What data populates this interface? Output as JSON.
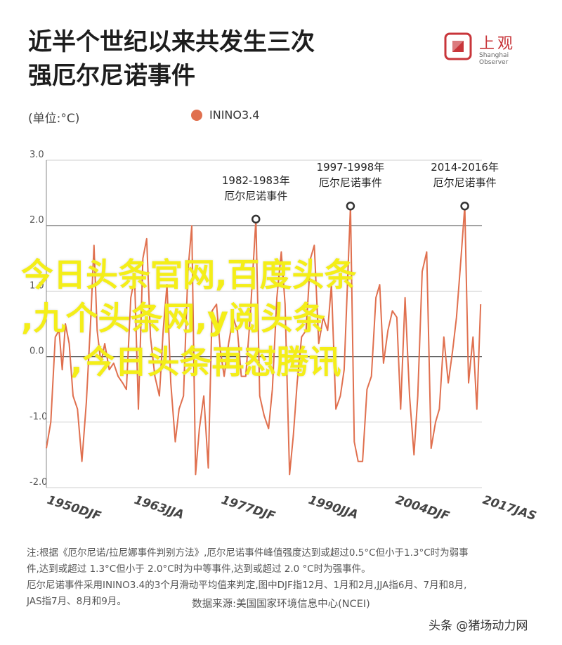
{
  "header": {
    "title_line1": "近半个世纪以来共发生三次",
    "title_line2": "强厄尔尼诺事件",
    "logo_cn": "上观",
    "logo_en": "Shanghai Observer"
  },
  "unit_label": "(单位:°C)",
  "watermark": {
    "line1": "今日头条官网,百度头条",
    "line2": ",九个头条网,y阅头条",
    "line3": ",今日头条再怼腾讯"
  },
  "notes": {
    "line1": "注:根据《厄尔尼诺/拉尼娜事件判别方法》,厄尔尼诺事件峰值强度达到或超过0.5°C但小于1.3°C时为弱事",
    "line2": "件,达到或超过 1.3°C但小于 2.0°C时为中等事件,达到或超过 2.0 °C时为强事件。",
    "line3": "厄尔尼诺事件采用ININO3.4的3个月滑动平均值来判定,图中DJF指12月、1月和2月,JJA指6月、7月和8月,",
    "line4": "JAS指7月、8月和9月。"
  },
  "source": "数据来源:美国国家环境信息中心(NCEI)",
  "brand": "头条 @猪场动力网",
  "colors": {
    "line": "#e0704f",
    "grid": "#cfcfcf",
    "axis": "#444444",
    "watermark": "#f4ee18",
    "logo": "#c8353a"
  },
  "chart_data": {
    "type": "line",
    "legend": "ININO3.4",
    "ylim": [
      -2.0,
      3.0
    ],
    "yticks": [
      "3.0",
      "2.0",
      "1.0",
      "0.0",
      "-1.0",
      "-2.0"
    ],
    "xticks": [
      "1950DJF",
      "1963JJA",
      "1977DJF",
      "1990JJA",
      "2004DJF",
      "2017JAS"
    ],
    "annotations": [
      {
        "label_line1": "1982-1983年",
        "label_line2": "厄尔尼诺事件",
        "x": 1983.0,
        "y": 2.1
      },
      {
        "label_line1": "1997-1998年",
        "label_line2": "厄尔尼诺事件",
        "x": 1997.9,
        "y": 2.3
      },
      {
        "label_line1": "2014-2016年",
        "label_line2": "厄尔尼诺事件",
        "x": 2015.9,
        "y": 2.3
      }
    ],
    "series": [
      {
        "name": "ININO3.4",
        "x": [
          1950.0,
          1950.7,
          1951.4,
          1952.0,
          1952.5,
          1953.0,
          1953.6,
          1954.2,
          1954.9,
          1955.6,
          1956.3,
          1957.0,
          1957.5,
          1958.0,
          1958.6,
          1959.2,
          1959.9,
          1960.6,
          1961.3,
          1962.0,
          1962.6,
          1963.3,
          1963.9,
          1964.5,
          1965.2,
          1965.8,
          1966.4,
          1967.1,
          1967.8,
          1968.4,
          1969.0,
          1969.6,
          1970.3,
          1970.9,
          1971.6,
          1972.3,
          1972.9,
          1973.5,
          1974.1,
          1974.8,
          1975.5,
          1976.1,
          1976.8,
          1977.4,
          1978.0,
          1978.7,
          1979.4,
          1980.1,
          1980.7,
          1981.4,
          1982.1,
          1983.0,
          1983.6,
          1984.3,
          1985.0,
          1985.6,
          1986.3,
          1987.0,
          1987.6,
          1988.3,
          1988.9,
          1989.5,
          1990.2,
          1990.9,
          1991.6,
          1992.2,
          1992.9,
          1993.6,
          1994.3,
          1994.9,
          1995.6,
          1996.3,
          1996.9,
          1997.9,
          1998.5,
          1999.1,
          1999.8,
          2000.5,
          2001.2,
          2001.9,
          2002.5,
          2003.1,
          2003.8,
          2004.5,
          2005.2,
          2005.8,
          2006.5,
          2007.2,
          2007.9,
          2008.5,
          2009.2,
          2009.9,
          2010.6,
          2011.3,
          2011.9,
          2012.6,
          2013.3,
          2014.0,
          2014.6,
          2015.3,
          2015.9,
          2016.5,
          2017.2,
          2017.8,
          2018.4
        ],
        "y": [
          -1.4,
          -1.0,
          0.3,
          0.4,
          -0.2,
          0.5,
          0.2,
          -0.6,
          -0.8,
          -1.6,
          -0.7,
          0.6,
          1.7,
          0.4,
          -0.1,
          0.2,
          -0.2,
          -0.1,
          -0.3,
          -0.4,
          -0.5,
          0.9,
          1.2,
          -0.8,
          1.5,
          1.8,
          0.3,
          -0.3,
          -0.6,
          0.4,
          1.1,
          -0.4,
          -1.3,
          -0.8,
          -0.6,
          1.3,
          2.0,
          -1.8,
          -1.1,
          -0.6,
          -1.7,
          0.7,
          0.8,
          0.1,
          -0.3,
          0.2,
          0.6,
          0.4,
          -0.3,
          -0.3,
          0.6,
          2.1,
          -0.6,
          -0.9,
          -1.1,
          -0.5,
          0.9,
          1.6,
          0.8,
          -1.8,
          -1.2,
          -0.4,
          0.3,
          0.4,
          1.5,
          1.7,
          0.2,
          0.6,
          0.4,
          1.1,
          -0.8,
          -0.6,
          -0.2,
          2.3,
          -1.3,
          -1.6,
          -1.6,
          -0.5,
          -0.3,
          0.9,
          1.1,
          -0.1,
          0.4,
          0.7,
          0.6,
          -0.8,
          0.9,
          -0.6,
          -1.5,
          -0.6,
          1.3,
          1.6,
          -1.4,
          -1.0,
          -0.8,
          0.3,
          -0.4,
          0.1,
          0.6,
          1.5,
          2.3,
          -0.4,
          0.3,
          -0.8,
          0.8
        ]
      }
    ]
  }
}
